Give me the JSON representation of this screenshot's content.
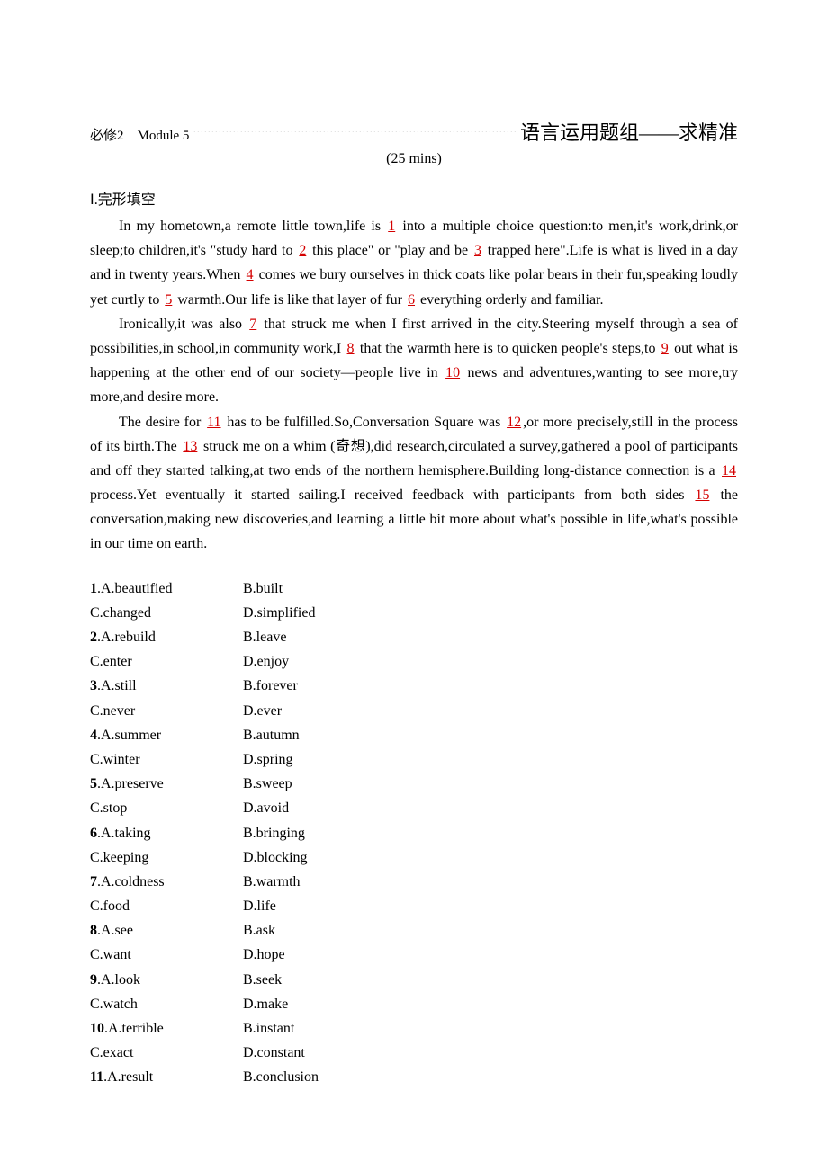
{
  "header": {
    "left": "必修2　Module 5",
    "right": "语言运用题组——求精准",
    "time": "(25 mins)"
  },
  "section_title": "Ⅰ.完形填空",
  "blank_numbers": [
    "1",
    "2",
    "3",
    "4",
    "5",
    "6",
    "7",
    "8",
    "9",
    "10",
    "11",
    "12",
    "13",
    "14",
    "15"
  ],
  "passage": {
    "p1_1": "In my hometown,a remote little town,life is ",
    "p1_2": " into a multiple choice question:to men,it's work,drink,or sleep;to children,it's \"study hard to ",
    "p1_3": " this place\" or \"play and be ",
    "p1_4": " trapped here\".Life is what is lived in a day and in twenty years.When ",
    "p1_5": " comes we bury ourselves in thick coats like polar bears in their fur,speaking loudly yet curtly to ",
    "p1_6": " warmth.Our life is like that layer of fur ",
    "p1_7": " everything orderly and familiar.",
    "p2_1": "Ironically,it was also ",
    "p2_2": " that struck me when I first arrived in the city.Steering myself through a sea of possibilities,in school,in community work,I ",
    "p2_3": " that the warmth here is to quicken people's steps,to ",
    "p2_4": " out what is happening at the other end of our society—people live in ",
    "p2_5": " news and adventures,wanting to see more,try more,and desire more.",
    "p3_1": "The desire for ",
    "p3_2": " has to be fulfilled.So,Conversation Square was ",
    "p3_3": ",or more precisely,still in the process of its birth.The ",
    "p3_4": " struck me on a whim (奇想),did research,circulated a survey,gathered a pool of participants and off they started talking,at two ends of the northern hemisphere.Building long-distance connection is a ",
    "p3_5": " process.Yet eventually it started sailing.I received feedback with participants from both sides ",
    "p3_6": " the conversation,making new discoveries,and learning a little bit more about what's possible in life,what's possible in our time on earth."
  },
  "questions": [
    {
      "n": "1",
      "a": "A.beautified",
      "b": "B.built"
    },
    {
      "n": "1c",
      "a": "C.changed",
      "b": "D.simplified"
    },
    {
      "n": "2",
      "a": "A.rebuild",
      "b": "B.leave"
    },
    {
      "n": "2c",
      "a": "C.enter",
      "b": "D.enjoy"
    },
    {
      "n": "3",
      "a": "A.still",
      "b": "B.forever"
    },
    {
      "n": "3c",
      "a": "C.never",
      "b": "D.ever"
    },
    {
      "n": "4",
      "a": "A.summer",
      "b": "B.autumn"
    },
    {
      "n": "4c",
      "a": "C.winter",
      "b": "D.spring"
    },
    {
      "n": "5",
      "a": "A.preserve",
      "b": "B.sweep"
    },
    {
      "n": "5c",
      "a": "C.stop",
      "b": "D.avoid"
    },
    {
      "n": "6",
      "a": "A.taking",
      "b": "B.bringing"
    },
    {
      "n": "6c",
      "a": "C.keeping",
      "b": "D.blocking"
    },
    {
      "n": "7",
      "a": "A.coldness",
      "b": "B.warmth"
    },
    {
      "n": "7c",
      "a": "C.food",
      "b": "D.life"
    },
    {
      "n": "8",
      "a": "A.see",
      "b": "B.ask"
    },
    {
      "n": "8c",
      "a": "C.want",
      "b": "D.hope"
    },
    {
      "n": "9",
      "a": "A.look",
      "b": "B.seek"
    },
    {
      "n": "9c",
      "a": "C.watch",
      "b": "D.make"
    },
    {
      "n": "10",
      "a": "A.terrible",
      "b": "B.instant"
    },
    {
      "n": "10c",
      "a": "C.exact",
      "b": "D.constant"
    },
    {
      "n": "11",
      "a": "A.result",
      "b": "B.conclusion"
    }
  ]
}
